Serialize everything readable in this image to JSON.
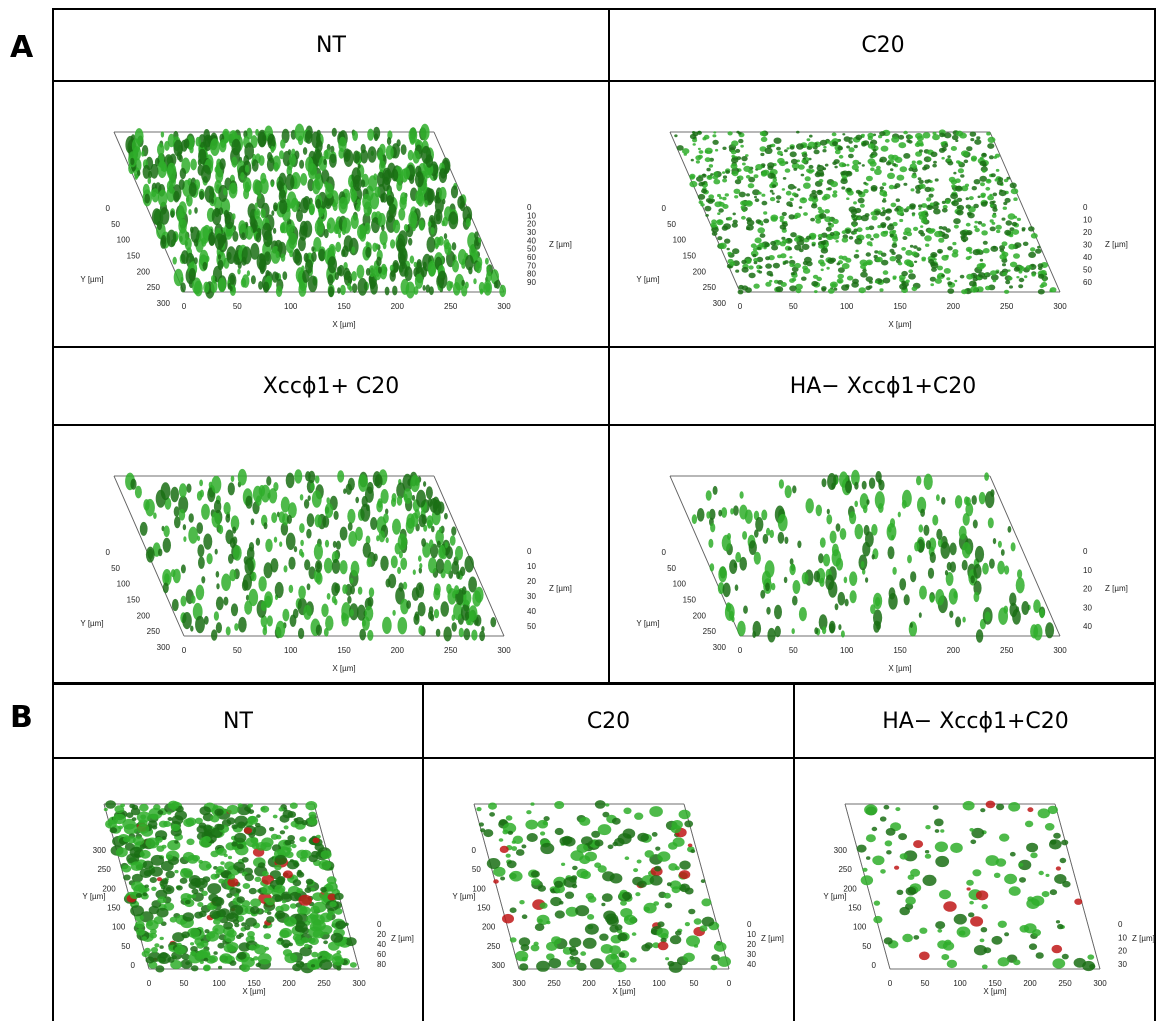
{
  "panel_a": {
    "letter": "A",
    "cells": [
      {
        "title": "NT",
        "x_ticks": [
          "0",
          "50",
          "100",
          "150",
          "200",
          "250",
          "300"
        ],
        "y_ticks": [
          "0",
          "50",
          "100",
          "150",
          "200",
          "250",
          "300"
        ],
        "z_ticks": [
          "0",
          "10",
          "20",
          "30",
          "40",
          "50",
          "60",
          "70",
          "80",
          "90"
        ]
      },
      {
        "title": "C20",
        "x_ticks": [
          "0",
          "50",
          "100",
          "150",
          "200",
          "250",
          "300"
        ],
        "y_ticks": [
          "0",
          "50",
          "100",
          "150",
          "200",
          "250",
          "300"
        ],
        "z_ticks": [
          "0",
          "10",
          "20",
          "30",
          "40",
          "50",
          "60"
        ]
      },
      {
        "title": "Xccϕ1+ C20",
        "x_ticks": [
          "0",
          "50",
          "100",
          "150",
          "200",
          "250",
          "300"
        ],
        "y_ticks": [
          "0",
          "50",
          "100",
          "150",
          "200",
          "250",
          "300"
        ],
        "z_ticks": [
          "0",
          "10",
          "20",
          "30",
          "40",
          "50"
        ]
      },
      {
        "title": "HA− Xccϕ1+C20",
        "x_ticks": [
          "0",
          "50",
          "100",
          "150",
          "200",
          "250",
          "300"
        ],
        "y_ticks": [
          "0",
          "50",
          "100",
          "150",
          "200",
          "250",
          "300"
        ],
        "z_ticks": [
          "0",
          "10",
          "20",
          "30",
          "40"
        ]
      }
    ]
  },
  "panel_b": {
    "letter": "B",
    "cells": [
      {
        "title": "NT",
        "x_ticks": [
          "0",
          "50",
          "100",
          "150",
          "200",
          "250",
          "300"
        ],
        "y_ticks": [
          "300",
          "250",
          "200",
          "150",
          "100",
          "50",
          "0"
        ],
        "z_ticks": [
          "0",
          "20",
          "40",
          "60",
          "80"
        ]
      },
      {
        "title": "C20",
        "x_ticks": [
          "300",
          "250",
          "200",
          "150",
          "100",
          "50",
          "0"
        ],
        "y_ticks": [
          "0",
          "50",
          "100",
          "150",
          "200",
          "250",
          "300"
        ],
        "z_ticks": [
          "0",
          "10",
          "20",
          "30",
          "40"
        ]
      },
      {
        "title": "HA− Xccϕ1+C20",
        "x_ticks": [
          "0",
          "50",
          "100",
          "150",
          "200",
          "250",
          "300"
        ],
        "y_ticks": [
          "300",
          "250",
          "200",
          "150",
          "100",
          "50",
          "0"
        ],
        "z_ticks": [
          "0",
          "10",
          "20",
          "30"
        ]
      }
    ]
  },
  "axis_labels": {
    "x": "X [µm]",
    "y": "Y [µm]",
    "z": "Z [µm]"
  },
  "colors": {
    "biofilm": "#2fae2a",
    "biofilm_dark": "#1a6e14",
    "dead": "#c01818"
  }
}
